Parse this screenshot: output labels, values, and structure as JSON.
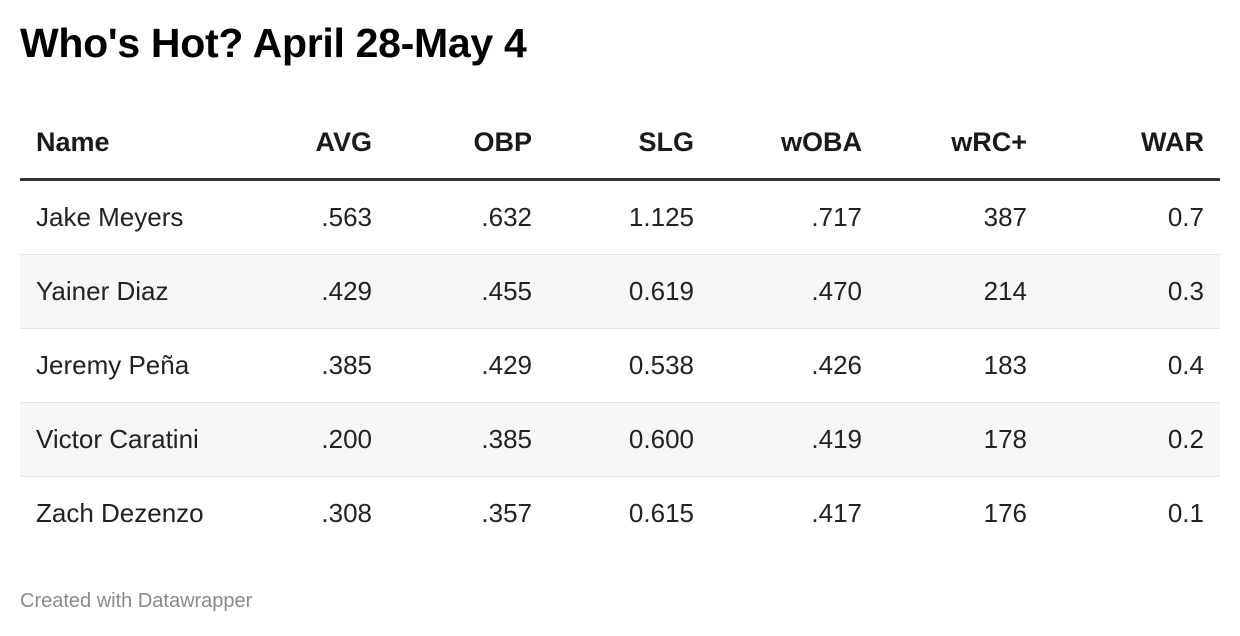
{
  "chart_data": {
    "type": "table",
    "title": "Who's Hot? April 28-May 4",
    "columns": [
      "Name",
      "AVG",
      "OBP",
      "SLG",
      "wOBA",
      "wRC+",
      "WAR"
    ],
    "rows": [
      [
        "Jake Meyers",
        ".563",
        ".632",
        "1.125",
        ".717",
        "387",
        "0.7"
      ],
      [
        "Yainer Diaz",
        ".429",
        ".455",
        "0.619",
        ".470",
        "214",
        "0.3"
      ],
      [
        "Jeremy Peña",
        ".385",
        ".429",
        "0.538",
        ".426",
        "183",
        "0.4"
      ],
      [
        "Victor Caratini",
        ".200",
        ".385",
        "0.600",
        ".419",
        "178",
        "0.2"
      ],
      [
        "Zach Dezenzo",
        ".308",
        ".357",
        "0.615",
        ".417",
        "176",
        "0.1"
      ]
    ],
    "footer": "Created with Datawrapper"
  },
  "colors": {
    "text": "#1d1d1d",
    "header_rule": "#333333",
    "stripe": "#f7f7f7",
    "footer_text": "#8a8a8a"
  }
}
